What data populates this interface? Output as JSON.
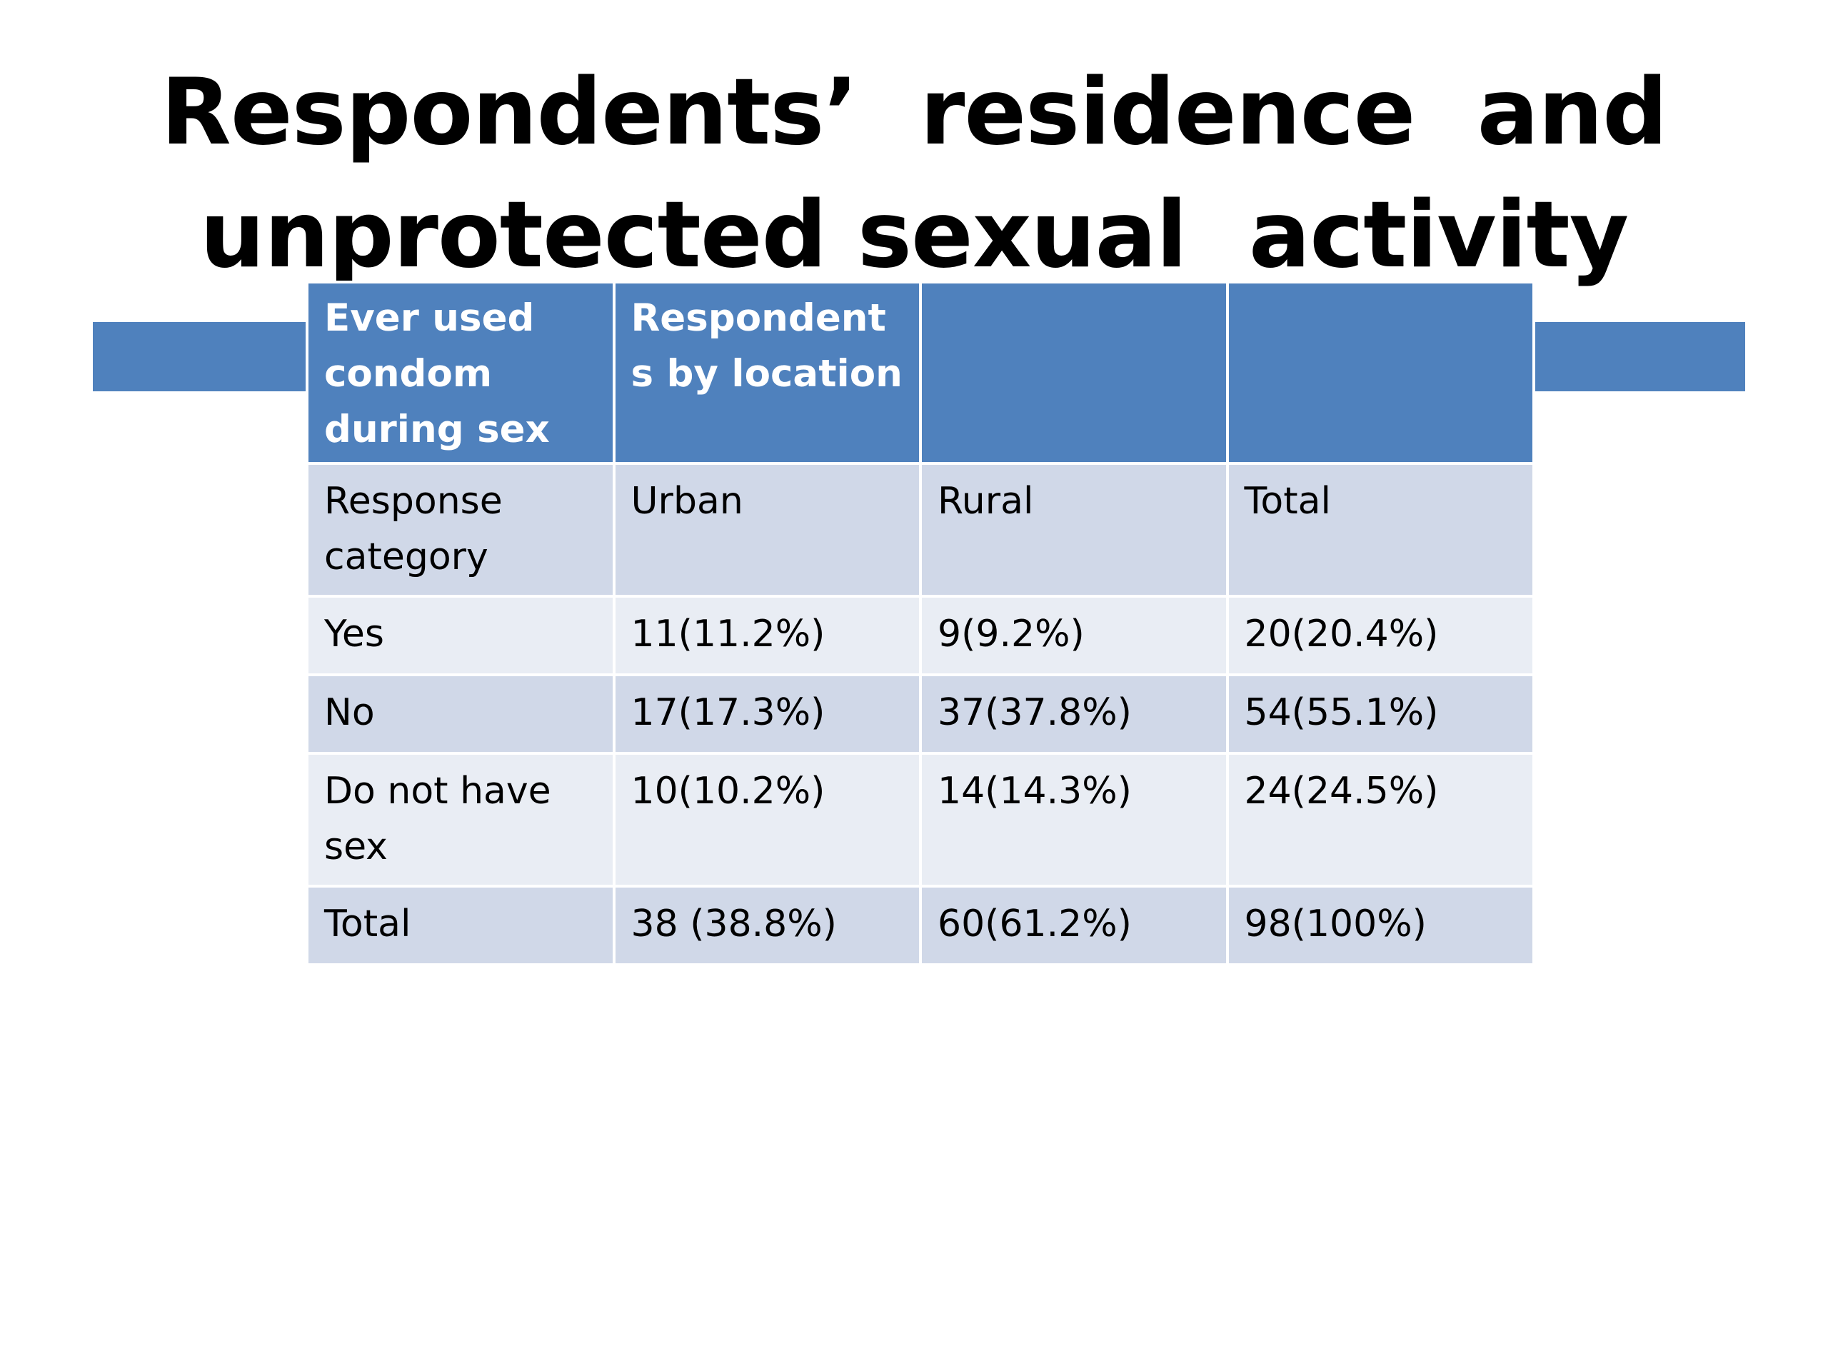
{
  "title": {
    "line1": "Respondents’  residence  and",
    "line2": "unprotected sexual  activity"
  },
  "colors": {
    "header_bg": "#4f81bd",
    "row_dark": "#d0d8e8",
    "row_light": "#e9edf4"
  },
  "table": {
    "header": [
      " Ever used condom during sex",
      "Respondents by location",
      "",
      ""
    ],
    "subheader": [
      "Response category",
      "Urban",
      "Rural",
      "Total"
    ],
    "rows": [
      [
        "Yes",
        "11(11.2%)",
        "9(9.2%)",
        "20(20.4%)"
      ],
      [
        "No",
        "17(17.3%)",
        "37(37.8%)",
        "54(55.1%)"
      ],
      [
        "Do not have sex",
        "10(10.2%)",
        "14(14.3%)",
        "24(24.5%)"
      ],
      [
        "Total",
        "38 (38.8%)",
        "60(61.2%)",
        "98(100%)"
      ]
    ]
  }
}
